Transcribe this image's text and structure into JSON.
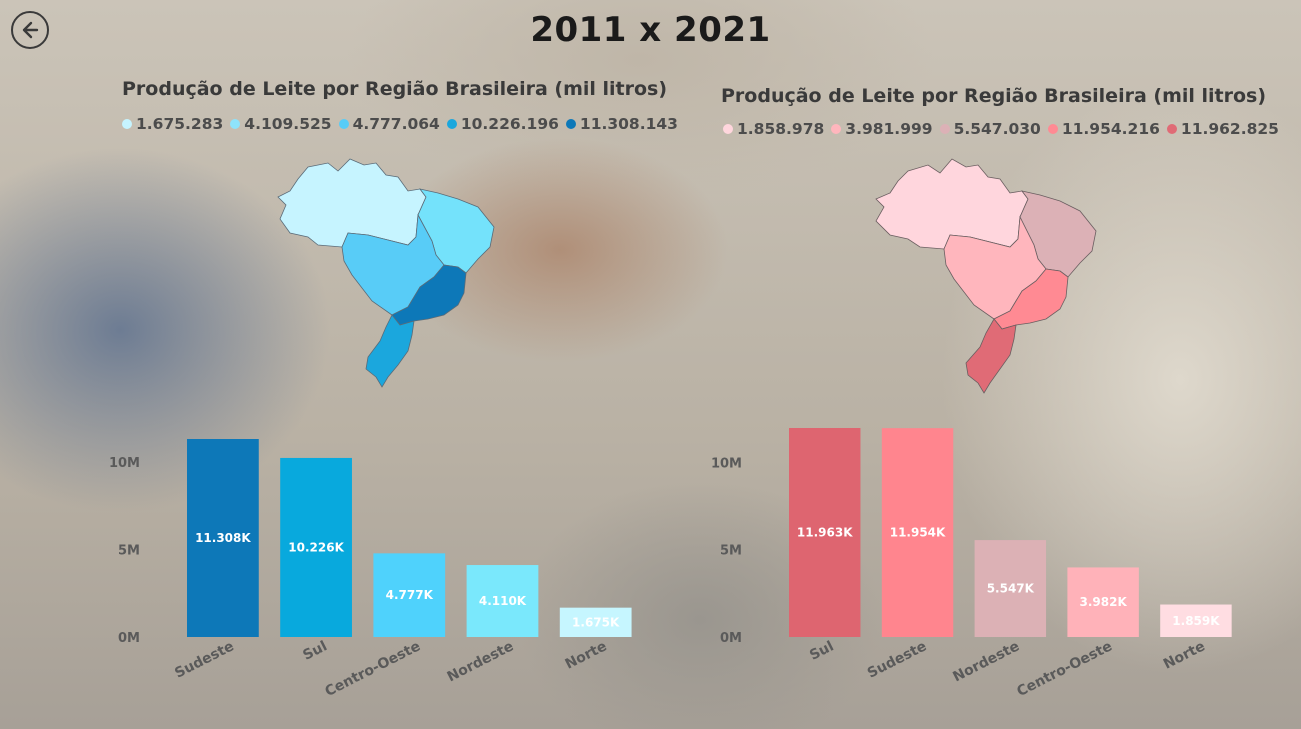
{
  "page": {
    "title": "2011 x 2021",
    "back_icon": "arrow-left-icon"
  },
  "panels": [
    {
      "id": "left",
      "title": "Produção de Leite por Região Brasileira (mil litros)",
      "legend": [
        {
          "label": "1.675.283",
          "color": "#c6f4ff"
        },
        {
          "label": "4.109.525",
          "color": "#8ee3fb"
        },
        {
          "label": "4.777.064",
          "color": "#58ccf7"
        },
        {
          "label": "10.226.196",
          "color": "#1ba7dd"
        },
        {
          "label": "11.308.143",
          "color": "#0d78b8"
        }
      ],
      "map_colors": {
        "norte": "#c6f4ff",
        "nordeste": "#74e2fb",
        "centro_oeste": "#58ccf7",
        "sudeste": "#0d78b8",
        "sul": "#1ba7dd"
      }
    },
    {
      "id": "right",
      "title": "Produção de Leite por Região Brasileira (mil litros)",
      "legend": [
        {
          "label": "1.858.978",
          "color": "#ffd6dd"
        },
        {
          "label": "3.981.999",
          "color": "#ffb6bd"
        },
        {
          "label": "5.547.030",
          "color": "#dcb1b6"
        },
        {
          "label": "11.954.216",
          "color": "#ff8a93"
        },
        {
          "label": "11.962.825",
          "color": "#e06b76"
        }
      ],
      "map_colors": {
        "norte": "#ffd6dd",
        "nordeste": "#dcb1b6",
        "centro_oeste": "#ffb6bd",
        "sudeste": "#ff8a93",
        "sul": "#e06b76"
      }
    }
  ],
  "chart_data": [
    {
      "type": "bar",
      "title": "",
      "xlabel": "",
      "ylabel": "",
      "ylim": [
        0,
        11308143
      ],
      "yticks": [
        {
          "value": 0,
          "label": "0M"
        },
        {
          "value": 5000000,
          "label": "5M"
        },
        {
          "value": 10000000,
          "label": "10M"
        }
      ],
      "categories": [
        "Sudeste",
        "Sul",
        "Centro-Oeste",
        "Nordeste",
        "Norte"
      ],
      "values": [
        11308143,
        10226196,
        4777064,
        4109525,
        1675283
      ],
      "data_labels": [
        "11.308K",
        "10.226K",
        "4.777K",
        "4.110K",
        "1.675K"
      ],
      "colors": [
        "#0d78b8",
        "#08a9dd",
        "#4fd2fc",
        "#7ae8fc",
        "#c6f6ff"
      ],
      "label_colors": [
        "#ffffff",
        "#ffffff",
        "#ffffff",
        "#ffffff",
        "#ffffff"
      ]
    },
    {
      "type": "bar",
      "title": "",
      "xlabel": "",
      "ylabel": "",
      "ylim": [
        0,
        11962825
      ],
      "yticks": [
        {
          "value": 0,
          "label": "0M"
        },
        {
          "value": 5000000,
          "label": "5M"
        },
        {
          "value": 10000000,
          "label": "10M"
        }
      ],
      "categories": [
        "Sul",
        "Sudeste",
        "Nordeste",
        "Centro-Oeste",
        "Norte"
      ],
      "values": [
        11962825,
        11954216,
        5547030,
        3981999,
        1858978
      ],
      "data_labels": [
        "11.963K",
        "11.954K",
        "5.547K",
        "3.982K",
        "1.859K"
      ],
      "colors": [
        "#de6570",
        "#ff858e",
        "#dcb1b5",
        "#ffb2b9",
        "#ffdde2"
      ],
      "label_colors": [
        "#ffffff",
        "#ffffff",
        "#ffffff",
        "#ffffff",
        "#ffffff"
      ]
    }
  ]
}
